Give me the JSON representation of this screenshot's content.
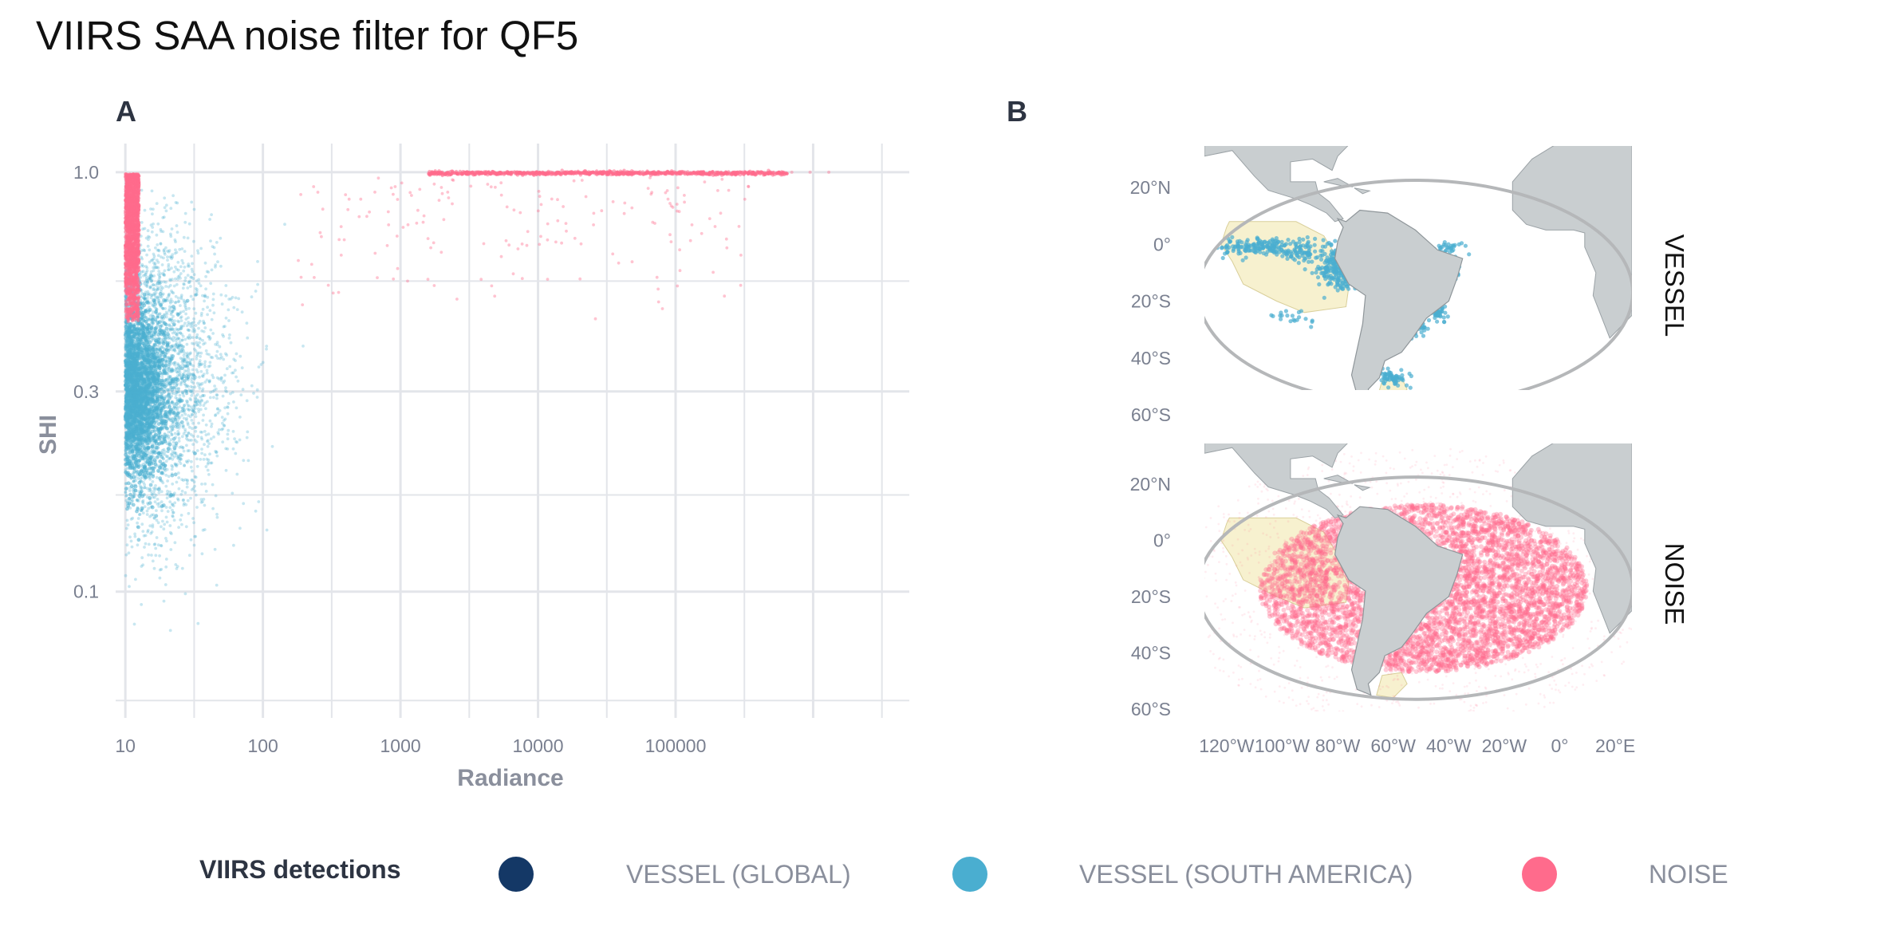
{
  "title": "VIIRS SAA noise filter for QF5",
  "colors": {
    "vessel_global": "#143866",
    "vessel_south_america": "#4aaed0",
    "noise": "#ff6b8c",
    "land": "#c9ced0",
    "eez": "#f7f1cf",
    "grid": "#e3e5ea",
    "ellipse": "#b5b7b9"
  },
  "chart_data": [
    {
      "panel": "A",
      "type": "scatter",
      "xlabel": "Radiance",
      "ylabel": "SHI",
      "x_scale": "log10",
      "y_scale": "log10",
      "xlim": [
        8.5,
        5000000
      ],
      "ylim": [
        0.05,
        1.17
      ],
      "x_ticks": [
        10,
        100,
        1000,
        10000,
        100000
      ],
      "x_tick_labels": [
        "10",
        "100",
        "1000",
        "10000",
        "100000"
      ],
      "y_ticks": [
        0.1,
        0.3,
        1.0
      ],
      "y_tick_labels": [
        "0.1",
        "0.3",
        "1.0"
      ],
      "grid": true,
      "series": [
        {
          "name": "VESSEL (SOUTH AMERICA)",
          "color_key": "vessel_south_america",
          "description_points": [
            {
              "x_range": [
                10,
                100
              ],
              "y_range": [
                0.1,
                0.95
              ],
              "density": "very high near x=10-30, y=0.2-0.5"
            }
          ]
        },
        {
          "name": "NOISE",
          "color_key": "noise",
          "description_points": [
            {
              "x_range": [
                10,
                14
              ],
              "y_range": [
                0.45,
                1.0
              ],
              "density": "very high"
            },
            {
              "x_range": [
                1500,
                700000
              ],
              "y_range": [
                0.99,
                1.0
              ],
              "density": "dense band at SHI=1.0"
            },
            {
              "x_range": [
                150,
                200000
              ],
              "y_range": [
                0.3,
                0.95
              ],
              "density": "sparse"
            }
          ]
        }
      ]
    },
    {
      "panel": "B",
      "type": "map",
      "facets": [
        "VESSEL",
        "NOISE"
      ],
      "lon_ticks": [
        "120°W",
        "100°W",
        "80°W",
        "60°W",
        "40°W",
        "20°W",
        "0°",
        "20°E"
      ],
      "lat_ticks": [
        "20°N",
        "0°",
        "20°S",
        "40°S",
        "60°S"
      ]
    }
  ],
  "panel_labels": {
    "a": "A",
    "b": "B"
  },
  "legend": {
    "title": "VIIRS detections",
    "items": [
      {
        "label": "VESSEL (GLOBAL)",
        "color_key": "vessel_global"
      },
      {
        "label": "VESSEL (SOUTH AMERICA)",
        "color_key": "vessel_south_america"
      },
      {
        "label": "NOISE",
        "color_key": "noise"
      }
    ]
  }
}
